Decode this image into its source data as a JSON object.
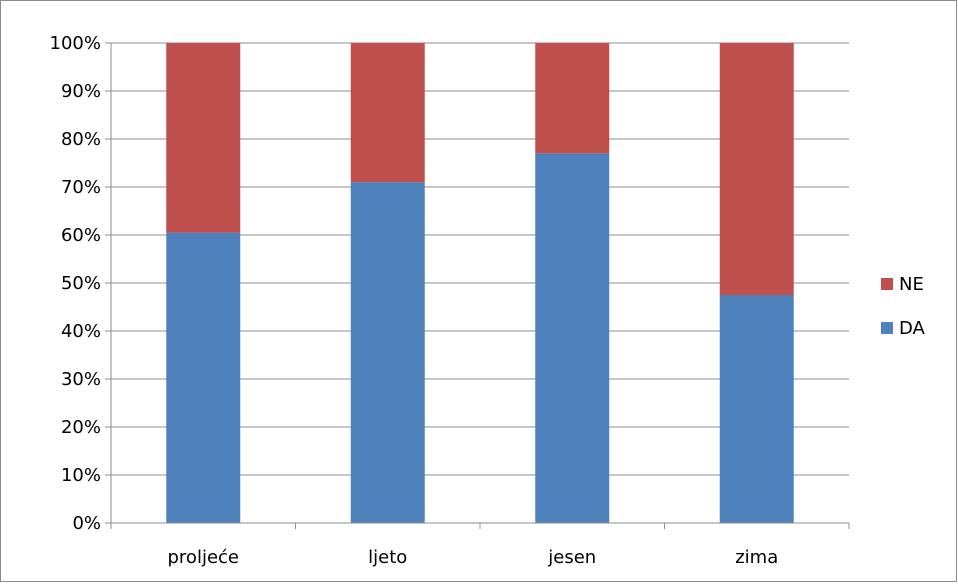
{
  "chart_data": {
    "type": "bar",
    "stacked": true,
    "percent_stacked": true,
    "categories": [
      "proljeće",
      "ljeto",
      "jesen",
      "zima"
    ],
    "series": [
      {
        "name": "DA",
        "values": [
          60.5,
          71,
          77,
          47.5
        ],
        "color": "#4f81bd"
      },
      {
        "name": "NE",
        "values": [
          39.5,
          29,
          23,
          52.5
        ],
        "color": "#c0504d"
      }
    ],
    "ylim": [
      0,
      100
    ],
    "y_ticks": [
      "0%",
      "10%",
      "20%",
      "30%",
      "40%",
      "50%",
      "60%",
      "70%",
      "80%",
      "90%",
      "100%"
    ],
    "grid": true,
    "legend_position": "right",
    "title": "",
    "xlabel": "",
    "ylabel": ""
  }
}
